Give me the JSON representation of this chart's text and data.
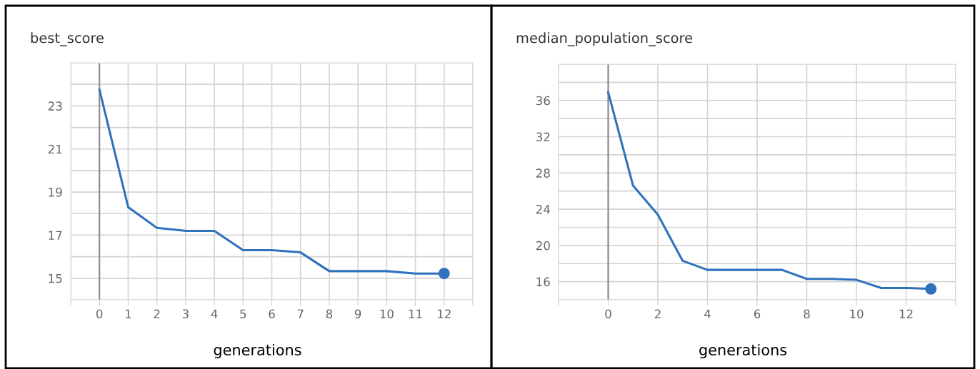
{
  "chart_data": [
    {
      "type": "line",
      "title": "best_score",
      "xlabel": "generations",
      "x": [
        0,
        1,
        2,
        3,
        4,
        5,
        6,
        7,
        8,
        9,
        10,
        11,
        12
      ],
      "series": [
        {
          "color": "#2f72bb",
          "marker": "none",
          "values": [
            23.75,
            18.3,
            17.34,
            17.2,
            17.2,
            16.3,
            16.3,
            16.2,
            15.33,
            15.33,
            15.33,
            15.22,
            15.22
          ]
        },
        {
          "type": "scatter",
          "color": "#2f72bb",
          "marker": "circle",
          "x": [
            12
          ],
          "values": [
            15.22
          ]
        }
      ],
      "xlim": [
        -1,
        13
      ],
      "ylim": [
        14,
        25
      ],
      "xticks": [
        {
          "value": -1,
          "label": null
        },
        0,
        1,
        2,
        3,
        4,
        5,
        6,
        7,
        8,
        9,
        10,
        11,
        12,
        {
          "value": 13,
          "label": null
        }
      ],
      "yticks": [
        {
          "value": 14,
          "label": null
        },
        15,
        {
          "value": 16,
          "label": null
        },
        17,
        {
          "value": 18,
          "label": null
        },
        19,
        {
          "value": 20,
          "label": null
        },
        21,
        {
          "value": 22,
          "label": null
        },
        23,
        {
          "value": 24,
          "label": null
        },
        {
          "value": 25,
          "label": null
        }
      ],
      "ref_lines": [
        {
          "axis": "x",
          "value": 0,
          "color": "#8a8a8a"
        }
      ],
      "grid": true,
      "line_style": "solid"
    },
    {
      "type": "line",
      "title": "median_population_score",
      "xlabel": "generations",
      "x": [
        0,
        1,
        2,
        3,
        4,
        5,
        6,
        7,
        8,
        9,
        10,
        11,
        12,
        13
      ],
      "series": [
        {
          "color": "#2f72bb",
          "marker": "none",
          "values": [
            36.9,
            26.6,
            23.4,
            18.3,
            17.3,
            17.3,
            17.3,
            17.3,
            16.3,
            16.3,
            16.2,
            15.3,
            15.3,
            15.2
          ]
        },
        {
          "type": "scatter",
          "color": "#2f72bb",
          "marker": "circle",
          "x": [
            13
          ],
          "values": [
            15.2
          ]
        }
      ],
      "xlim": [
        -2,
        14
      ],
      "ylim": [
        14,
        40
      ],
      "xticks": [
        {
          "value": -2,
          "label": null
        },
        0,
        2,
        4,
        6,
        8,
        10,
        12,
        {
          "value": 14,
          "label": null
        }
      ],
      "yticks": [
        {
          "value": 14,
          "label": null
        },
        16,
        {
          "value": 18,
          "label": null
        },
        20,
        {
          "value": 22,
          "label": null
        },
        24,
        {
          "value": 26,
          "label": null
        },
        28,
        {
          "value": 30,
          "label": null
        },
        32,
        {
          "value": 34,
          "label": null
        },
        36,
        {
          "value": 38,
          "label": null
        },
        {
          "value": 40,
          "label": null
        }
      ],
      "ref_lines": [
        {
          "axis": "x",
          "value": 0,
          "color": "#8a8a8a"
        }
      ],
      "grid": true,
      "line_style": "solid"
    }
  ]
}
